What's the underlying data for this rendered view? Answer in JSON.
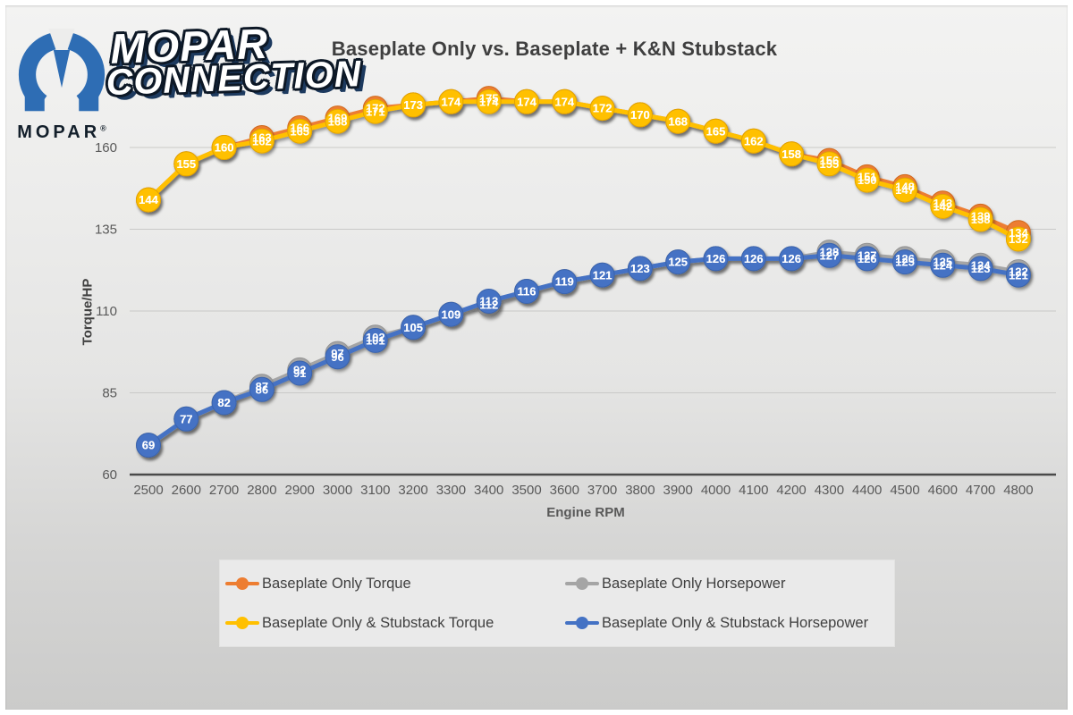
{
  "logo": {
    "brand": "MOPAR",
    "registered": "®",
    "wordmark_line1": "MOPAR",
    "wordmark_line2": "CONNECTION",
    "m_color": "#2e6db4"
  },
  "chart_data": {
    "type": "line",
    "title": "Baseplate Only vs. Baseplate + K&N Stubstack",
    "xlabel": "Engine RPM",
    "ylabel": "Torque/HP",
    "x": [
      2500,
      2600,
      2700,
      2800,
      2900,
      3000,
      3100,
      3200,
      3300,
      3400,
      3500,
      3600,
      3700,
      3800,
      3900,
      4000,
      4100,
      4200,
      4300,
      4400,
      4500,
      4600,
      4700,
      4800
    ],
    "y_ticks": [
      60,
      85,
      110,
      135,
      160
    ],
    "ylim": [
      60,
      175
    ],
    "grid": true,
    "legend_position": "bottom",
    "marker_style": "circle-with-value-labels",
    "series": [
      {
        "name": "Baseplate Only Torque",
        "color": "#ED7D31",
        "edge": "#d06a1f",
        "values": [
          144,
          155,
          160,
          163,
          166,
          169,
          172,
          173,
          174,
          175,
          174,
          174,
          172,
          170,
          168,
          165,
          162,
          158,
          156,
          151,
          148,
          143,
          139,
          134
        ]
      },
      {
        "name": "Baseplate Only Horsepower",
        "color": "#A5A5A5",
        "edge": "#939393",
        "values": [
          69,
          77,
          82,
          87,
          92,
          97,
          102,
          105,
          109,
          112,
          116,
          119,
          121,
          123,
          125,
          126,
          126,
          126,
          128,
          127,
          126,
          125,
          124,
          122
        ]
      },
      {
        "name": "Baseplate Only & Stubstack Torque",
        "color": "#FFC000",
        "edge": "#e2a400",
        "values": [
          144,
          155,
          160,
          162,
          165,
          168,
          171,
          173,
          174,
          174,
          174,
          174,
          172,
          170,
          168,
          165,
          162,
          158,
          155,
          150,
          147,
          142,
          138,
          132
        ]
      },
      {
        "name": "Baseplate Only & Stubstack Horsepower",
        "color": "#4472C4",
        "edge": "#3a63ac",
        "values": [
          69,
          77,
          82,
          86,
          91,
          96,
          101,
          105,
          109,
          113,
          116,
          119,
          121,
          123,
          125,
          126,
          126,
          126,
          127,
          126,
          125,
          124,
          123,
          121
        ]
      }
    ]
  }
}
